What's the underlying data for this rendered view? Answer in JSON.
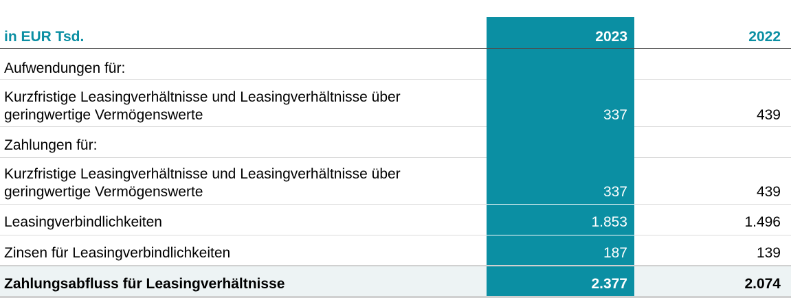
{
  "header": {
    "unit_label": "in EUR Tsd.",
    "year_current": "2023",
    "year_prior": "2022"
  },
  "rows": [
    {
      "label": "Aufwendungen für:",
      "v2023": "",
      "v2022": ""
    },
    {
      "label_line1": "Kurzfristige Leasingverhältnisse und Leasingverhältnisse über",
      "label_line2": "geringwertige Vermögenswerte",
      "v2023": "337",
      "v2022": "439"
    },
    {
      "label": "Zahlungen für:",
      "v2023": "",
      "v2022": ""
    },
    {
      "label_line1": "Kurzfristige Leasingverhältnisse und Leasingverhältnisse über",
      "label_line2": "geringwertige Vermögenswerte",
      "v2023": "337",
      "v2022": "439"
    },
    {
      "label": "Leasingverbindlichkeiten",
      "v2023": "1.853",
      "v2022": "1.496"
    },
    {
      "label": "Zinsen für Leasingverbindlichkeiten",
      "v2023": "187",
      "v2022": "139"
    }
  ],
  "total": {
    "label": "Zahlungsabfluss für Leasingverhältnisse",
    "v2023": "2.377",
    "v2022": "2.074"
  },
  "colors": {
    "accent": "#0b8fa3",
    "total_background": "#edf3f4"
  }
}
